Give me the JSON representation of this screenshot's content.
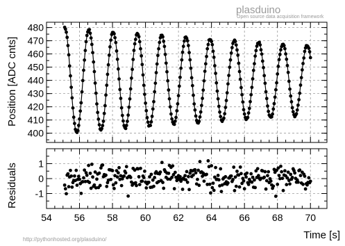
{
  "watermark": {
    "title": "plasduino",
    "subtitle": "Open source data acquisition framework"
  },
  "footer": {
    "url": "http://pythonhosted.org/plasduino/"
  },
  "chart_data": [
    {
      "type": "scatter",
      "panel": "top",
      "title": "",
      "xlabel": "",
      "ylabel": "Position [ADC cnts]",
      "xlim": [
        54,
        71
      ],
      "ylim": [
        393,
        484
      ],
      "xticks": [
        "54",
        "56",
        "58",
        "60",
        "62",
        "64",
        "66",
        "68",
        "70"
      ],
      "yticks": [
        "400",
        "410",
        "420",
        "430",
        "440",
        "450",
        "460",
        "470",
        "480"
      ],
      "grid": true,
      "legend": "none",
      "fit": {
        "function": "damped-sine",
        "offset": 440,
        "amplitude": 40,
        "decay": 0.028,
        "period": 1.47,
        "x_start": 55.1,
        "x_end": 70.0
      },
      "series": [
        {
          "x_start": 55.1,
          "x_end": 70.0,
          "step": 0.05
        }
      ]
    },
    {
      "type": "scatter",
      "panel": "bottom",
      "title": "",
      "xlabel": "Time [s]",
      "ylabel": "Residuals",
      "xlim": [
        54,
        71
      ],
      "ylim": [
        -2,
        2
      ],
      "xticks": [
        "54",
        "56",
        "58",
        "60",
        "62",
        "64",
        "66",
        "68",
        "70"
      ],
      "yticks": [
        "1",
        "0",
        "-1"
      ],
      "grid": true,
      "legend": "none",
      "series": [
        {
          "x_start": 55.1,
          "x_end": 70.0,
          "step": 0.05,
          "spread": 0.45
        }
      ]
    }
  ]
}
